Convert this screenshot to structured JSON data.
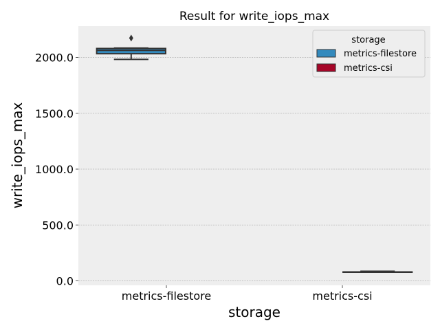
{
  "chart_data": {
    "type": "box",
    "title": "Result for write_iops_max",
    "xlabel": "storage",
    "ylabel": "write_iops_max",
    "categories": [
      "metrics-filestore",
      "metrics-csi"
    ],
    "hue": {
      "title": "storage",
      "levels": [
        "metrics-filestore",
        "metrics-csi"
      ]
    },
    "ylim": [
      -40,
      2280
    ],
    "yticks": [
      0,
      500,
      1000,
      1500,
      2000
    ],
    "ytick_labels": [
      "0.0",
      "500.0",
      "1000.0",
      "1500.0",
      "2000.0"
    ],
    "grid": true,
    "legend_position": "top-right",
    "boxes": [
      {
        "category": "metrics-filestore",
        "series": "metrics-filestore",
        "whisker_low": 1982,
        "q1": 2033,
        "median": 2063,
        "q3": 2080,
        "whisker_high": 2084,
        "outliers": [
          2173
        ]
      },
      {
        "category": "metrics-csi",
        "series": "metrics-csi",
        "whisker_low": 80,
        "q1": 80,
        "median": 80,
        "q3": 80,
        "whisker_high": 86,
        "outliers": []
      }
    ],
    "colors": {
      "metrics-filestore": "#348abd",
      "metrics-csi": "#a60628",
      "background": "#eeeeee",
      "grid": "#b2b2b2",
      "box_edge": "#333333"
    }
  }
}
